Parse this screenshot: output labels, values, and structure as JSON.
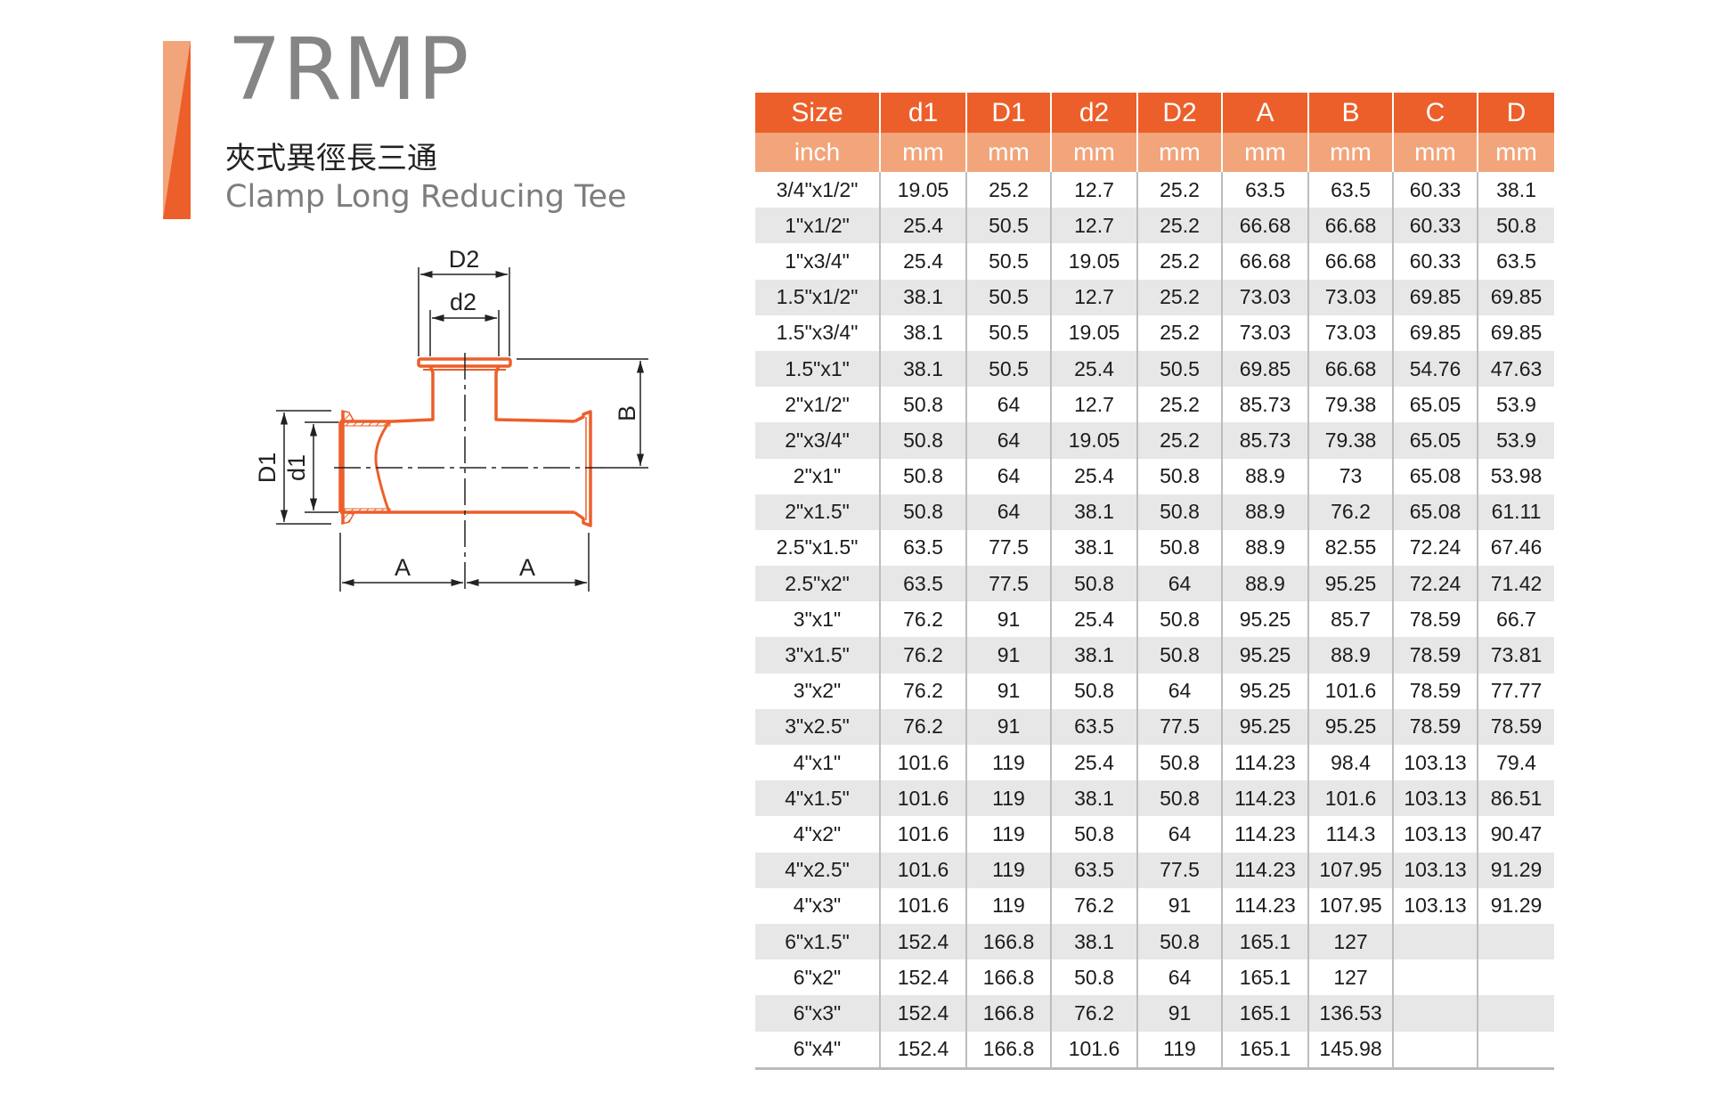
{
  "header": {
    "model_code": "7RMP",
    "title_chinese": "夾式異徑長三通",
    "title_english": "Clamp Long Reducing Tee",
    "accent_colors": {
      "dark": "#EC5F2A",
      "light": "#F2A57A"
    }
  },
  "diagram": {
    "labels": {
      "D2": "D2",
      "d2": "d2",
      "B": "B",
      "D1": "D1",
      "d1": "d1",
      "A_left": "A",
      "A_right": "A"
    },
    "line_color": "#EC5F2A"
  },
  "table": {
    "columns": [
      {
        "name": "Size",
        "unit": "inch"
      },
      {
        "name": "d1",
        "unit": "mm"
      },
      {
        "name": "D1",
        "unit": "mm"
      },
      {
        "name": "d2",
        "unit": "mm"
      },
      {
        "name": "D2",
        "unit": "mm"
      },
      {
        "name": "A",
        "unit": "mm"
      },
      {
        "name": "B",
        "unit": "mm"
      },
      {
        "name": "C",
        "unit": "mm"
      },
      {
        "name": "D",
        "unit": "mm"
      }
    ],
    "rows": [
      [
        "3/4\"x1/2\"",
        "19.05",
        "25.2",
        "12.7",
        "25.2",
        "63.5",
        "63.5",
        "60.33",
        "38.1"
      ],
      [
        "1\"x1/2\"",
        "25.4",
        "50.5",
        "12.7",
        "25.2",
        "66.68",
        "66.68",
        "60.33",
        "50.8"
      ],
      [
        "1\"x3/4\"",
        "25.4",
        "50.5",
        "19.05",
        "25.2",
        "66.68",
        "66.68",
        "60.33",
        "63.5"
      ],
      [
        "1.5\"x1/2\"",
        "38.1",
        "50.5",
        "12.7",
        "25.2",
        "73.03",
        "73.03",
        "69.85",
        "69.85"
      ],
      [
        "1.5\"x3/4\"",
        "38.1",
        "50.5",
        "19.05",
        "25.2",
        "73.03",
        "73.03",
        "69.85",
        "69.85"
      ],
      [
        "1.5\"x1\"",
        "38.1",
        "50.5",
        "25.4",
        "50.5",
        "69.85",
        "66.68",
        "54.76",
        "47.63"
      ],
      [
        "2\"x1/2\"",
        "50.8",
        "64",
        "12.7",
        "25.2",
        "85.73",
        "79.38",
        "65.05",
        "53.9"
      ],
      [
        "2\"x3/4\"",
        "50.8",
        "64",
        "19.05",
        "25.2",
        "85.73",
        "79.38",
        "65.05",
        "53.9"
      ],
      [
        "2\"x1\"",
        "50.8",
        "64",
        "25.4",
        "50.8",
        "88.9",
        "73",
        "65.08",
        "53.98"
      ],
      [
        "2\"x1.5\"",
        "50.8",
        "64",
        "38.1",
        "50.8",
        "88.9",
        "76.2",
        "65.08",
        "61.11"
      ],
      [
        "2.5\"x1.5\"",
        "63.5",
        "77.5",
        "38.1",
        "50.8",
        "88.9",
        "82.55",
        "72.24",
        "67.46"
      ],
      [
        "2.5\"x2\"",
        "63.5",
        "77.5",
        "50.8",
        "64",
        "88.9",
        "95.25",
        "72.24",
        "71.42"
      ],
      [
        "3\"x1\"",
        "76.2",
        "91",
        "25.4",
        "50.8",
        "95.25",
        "85.7",
        "78.59",
        "66.7"
      ],
      [
        "3\"x1.5\"",
        "76.2",
        "91",
        "38.1",
        "50.8",
        "95.25",
        "88.9",
        "78.59",
        "73.81"
      ],
      [
        "3\"x2\"",
        "76.2",
        "91",
        "50.8",
        "64",
        "95.25",
        "101.6",
        "78.59",
        "77.77"
      ],
      [
        "3\"x2.5\"",
        "76.2",
        "91",
        "63.5",
        "77.5",
        "95.25",
        "95.25",
        "78.59",
        "78.59"
      ],
      [
        "4\"x1\"",
        "101.6",
        "119",
        "25.4",
        "50.8",
        "114.23",
        "98.4",
        "103.13",
        "79.4"
      ],
      [
        "4\"x1.5\"",
        "101.6",
        "119",
        "38.1",
        "50.8",
        "114.23",
        "101.6",
        "103.13",
        "86.51"
      ],
      [
        "4\"x2\"",
        "101.6",
        "119",
        "50.8",
        "64",
        "114.23",
        "114.3",
        "103.13",
        "90.47"
      ],
      [
        "4\"x2.5\"",
        "101.6",
        "119",
        "63.5",
        "77.5",
        "114.23",
        "107.95",
        "103.13",
        "91.29"
      ],
      [
        "4\"x3\"",
        "101.6",
        "119",
        "76.2",
        "91",
        "114.23",
        "107.95",
        "103.13",
        "91.29"
      ],
      [
        "6\"x1.5\"",
        "152.4",
        "166.8",
        "38.1",
        "50.8",
        "165.1",
        "127",
        "",
        ""
      ],
      [
        "6\"x2\"",
        "152.4",
        "166.8",
        "50.8",
        "64",
        "165.1",
        "127",
        "",
        ""
      ],
      [
        "6\"x3\"",
        "152.4",
        "166.8",
        "76.2",
        "91",
        "165.1",
        "136.53",
        "",
        ""
      ],
      [
        "6\"x4\"",
        "152.4",
        "166.8",
        "101.6",
        "119",
        "165.1",
        "145.98",
        "",
        ""
      ]
    ]
  }
}
